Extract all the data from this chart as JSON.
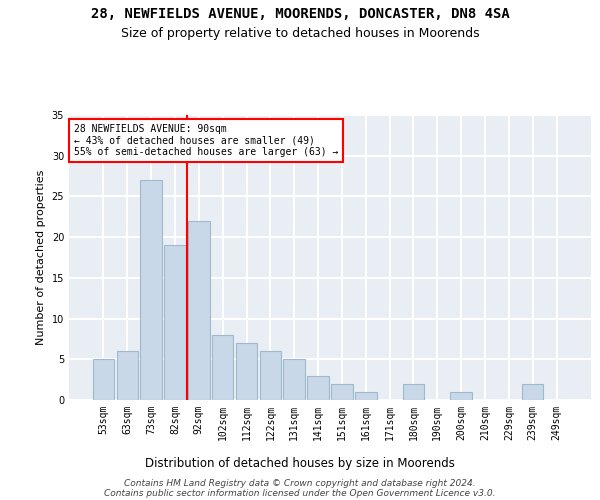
{
  "title1": "28, NEWFIELDS AVENUE, MOORENDS, DONCASTER, DN8 4SA",
  "title2": "Size of property relative to detached houses in Moorends",
  "xlabel": "Distribution of detached houses by size in Moorends",
  "ylabel": "Number of detached properties",
  "categories": [
    "53sqm",
    "63sqm",
    "73sqm",
    "82sqm",
    "92sqm",
    "102sqm",
    "112sqm",
    "122sqm",
    "131sqm",
    "141sqm",
    "151sqm",
    "161sqm",
    "171sqm",
    "180sqm",
    "190sqm",
    "200sqm",
    "210sqm",
    "229sqm",
    "239sqm",
    "249sqm"
  ],
  "values": [
    5,
    6,
    27,
    19,
    22,
    8,
    7,
    6,
    5,
    3,
    2,
    1,
    0,
    2,
    0,
    1,
    0,
    0,
    2,
    0
  ],
  "bar_color": "#c8d8e8",
  "bar_edgecolor": "#a0b8cc",
  "bar_linewidth": 0.8,
  "vline_x": 3.5,
  "vline_color": "red",
  "vline_linewidth": 1.5,
  "ylim": [
    0,
    35
  ],
  "yticks": [
    0,
    5,
    10,
    15,
    20,
    25,
    30,
    35
  ],
  "annotation_text": "28 NEWFIELDS AVENUE: 90sqm\n← 43% of detached houses are smaller (49)\n55% of semi-detached houses are larger (63) →",
  "annotation_box_color": "white",
  "annotation_box_edgecolor": "red",
  "footer_line1": "Contains HM Land Registry data © Crown copyright and database right 2024.",
  "footer_line2": "Contains public sector information licensed under the Open Government Licence v3.0.",
  "background_color": "#e8eef4",
  "grid_color": "white",
  "title1_fontsize": 10,
  "title2_fontsize": 9,
  "xlabel_fontsize": 8.5,
  "ylabel_fontsize": 8,
  "tick_fontsize": 7,
  "footer_fontsize": 6.5
}
